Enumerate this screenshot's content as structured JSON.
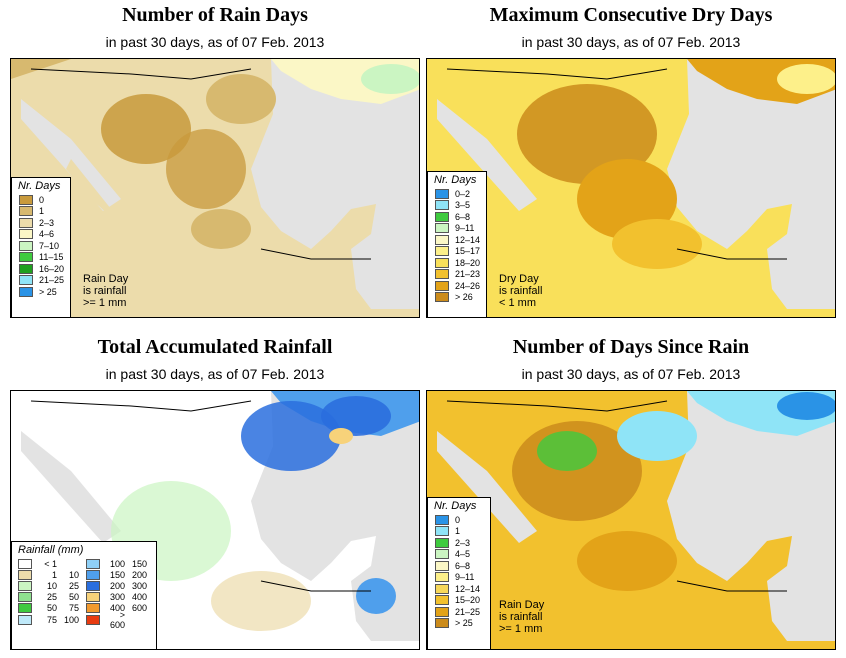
{
  "panels": [
    {
      "title": "Number of Rain Days",
      "subtitle": "in past 30 days, as of  07 Feb. 2013",
      "legend_title": "Nr. Days",
      "legend_items": [
        {
          "label": "0",
          "color": "#c89a3c"
        },
        {
          "label": "1",
          "color": "#d7b96f"
        },
        {
          "label": "2–3",
          "color": "#ecdcab"
        },
        {
          "label": "4–6",
          "color": "#fbf7c6"
        },
        {
          "label": "7–10",
          "color": "#cbf5c2"
        },
        {
          "label": "11–15",
          "color": "#3fca3f"
        },
        {
          "label": "16–20",
          "color": "#1fa01f"
        },
        {
          "label": "21–25",
          "color": "#8fe4f7"
        },
        {
          "label": "> 25",
          "color": "#2a93e6"
        }
      ],
      "note": [
        "Rain Day",
        "is rainfall",
        ">= 1 mm"
      ]
    },
    {
      "title": "Maximum Consecutive Dry Days",
      "subtitle": "in past 30 days, as of  07 Feb. 2013",
      "legend_title": "Nr. Days",
      "legend_items": [
        {
          "label": "0–2",
          "color": "#2a93e6"
        },
        {
          "label": "3–5",
          "color": "#8fe4f7"
        },
        {
          "label": "6–8",
          "color": "#3fca3f"
        },
        {
          "label": "9–11",
          "color": "#cbf5c2"
        },
        {
          "label": "12–14",
          "color": "#fbf7c6"
        },
        {
          "label": "15–17",
          "color": "#fdf08a"
        },
        {
          "label": "18–20",
          "color": "#f9e05a"
        },
        {
          "label": "21–23",
          "color": "#f2c12e"
        },
        {
          "label": "24–26",
          "color": "#e3a318"
        },
        {
          "label": "> 26",
          "color": "#cb8b1b"
        }
      ],
      "note": [
        "Dry Day",
        "is rainfall",
        "< 1 mm"
      ]
    },
    {
      "title": "Total Accumulated Rainfall",
      "subtitle": "in past 30 days, as of  07 Feb. 2013",
      "legend_title": "Rainfall (mm)",
      "legend_items": [
        {
          "from": "< 1",
          "to": "",
          "color": "#ffffff"
        },
        {
          "from": "1",
          "to": "10",
          "color": "#ecdcab"
        },
        {
          "from": "10",
          "to": "25",
          "color": "#cbf5c2"
        },
        {
          "from": "25",
          "to": "50",
          "color": "#8fe08f"
        },
        {
          "from": "50",
          "to": "75",
          "color": "#3fca3f"
        },
        {
          "from": "75",
          "to": "100",
          "color": "#bfe9f9"
        },
        {
          "from": "100",
          "to": "150",
          "color": "#8fd0f7"
        },
        {
          "from": "150",
          "to": "200",
          "color": "#4f9fec"
        },
        {
          "from": "200",
          "to": "300",
          "color": "#2a6ede"
        },
        {
          "from": "300",
          "to": "400",
          "color": "#f7d27a"
        },
        {
          "from": "400",
          "to": "600",
          "color": "#f29a2e"
        },
        {
          "from": "> 600",
          "to": "",
          "color": "#e83b10"
        }
      ]
    },
    {
      "title": "Number of Days Since Rain",
      "subtitle": "in past 30 days, as of  07 Feb. 2013",
      "legend_title": "Nr. Days",
      "legend_items": [
        {
          "label": "0",
          "color": "#2a93e6"
        },
        {
          "label": "1",
          "color": "#8fe4f7"
        },
        {
          "label": "2–3",
          "color": "#3fca3f"
        },
        {
          "label": "4–5",
          "color": "#cbf5c2"
        },
        {
          "label": "6–8",
          "color": "#fbf7c6"
        },
        {
          "label": "9–11",
          "color": "#fdf08a"
        },
        {
          "label": "12–14",
          "color": "#f7d85a"
        },
        {
          "label": "15–20",
          "color": "#f2c12e"
        },
        {
          "label": "21–25",
          "color": "#e3a318"
        },
        {
          "label": "> 25",
          "color": "#cb8b1b"
        }
      ],
      "note": [
        "Rain Day",
        "is rainfall",
        ">= 1 mm"
      ]
    }
  ],
  "colors": {
    "ocean": "#e3e3e3",
    "border": "#000000"
  }
}
